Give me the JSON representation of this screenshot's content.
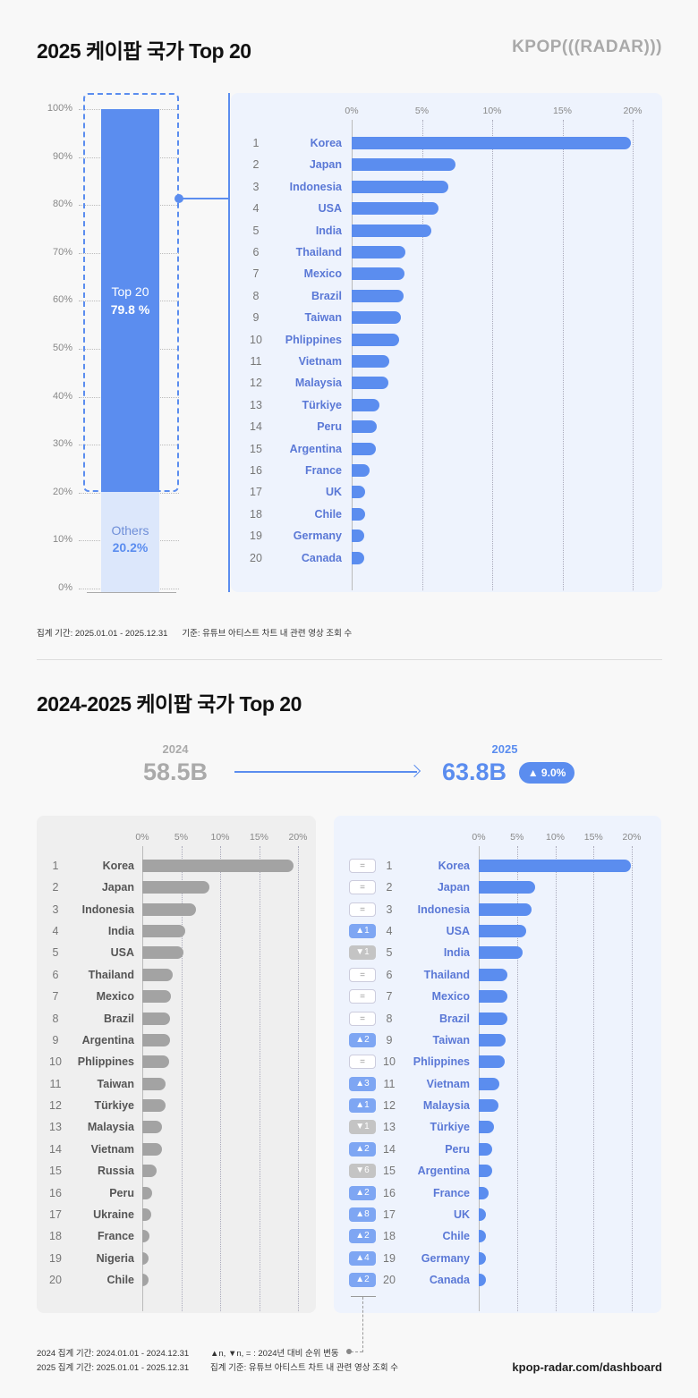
{
  "header": {
    "title": "2025 케이팝 국가 Top 20",
    "logo": "KPOP(((RADAR)))"
  },
  "share": {
    "top_label": "Top 20",
    "top_value": "79.8 %",
    "others_label": "Others",
    "others_value": "20.2%",
    "top_pct": 79.8,
    "others_pct": 20.2,
    "y_ticks": [
      "0%",
      "10%",
      "20%",
      "30%",
      "40%",
      "50%",
      "60%",
      "70%",
      "80%",
      "90%",
      "100%"
    ]
  },
  "footnote1": {
    "period": "집계 기간: 2025.01.01 - 2025.12.31",
    "basis": "기준: 유튜브 아티스트 차트 내 관련 영상 조회 수"
  },
  "section2": {
    "title": "2024-2025 케이팝 국가 Top 20",
    "y2024_label": "2024",
    "y2024_value": "58.5B",
    "y2025_label": "2025",
    "y2025_value": "63.8B",
    "growth": "▲ 9.0%"
  },
  "colors": {
    "blue": "#5b8def",
    "blue_text": "#5a78d6",
    "gray_bar": "#a3a3a3",
    "others": "#dce7fb"
  },
  "chart_data": [
    {
      "type": "bar",
      "orientation": "horizontal",
      "title": "2025",
      "x_ticks": [
        "0%",
        "5%",
        "10%",
        "15%",
        "20%"
      ],
      "xlim": [
        0,
        20
      ],
      "categories": [
        "Korea",
        "Japan",
        "Indonesia",
        "USA",
        "India",
        "Thailand",
        "Mexico",
        "Brazil",
        "Taiwan",
        "Phlippines",
        "Vietnam",
        "Malaysia",
        "Türkiye",
        "Peru",
        "Argentina",
        "France",
        "UK",
        "Chile",
        "Germany",
        "Canada"
      ],
      "values": [
        19.9,
        7.4,
        6.9,
        6.2,
        5.7,
        3.8,
        3.75,
        3.7,
        3.5,
        3.4,
        2.7,
        2.6,
        2.0,
        1.8,
        1.7,
        1.3,
        0.95,
        0.95,
        0.9,
        0.9
      ]
    },
    {
      "type": "bar",
      "orientation": "horizontal",
      "title": "2024",
      "x_ticks": [
        "0%",
        "5%",
        "10%",
        "15%",
        "20%"
      ],
      "xlim": [
        0,
        20
      ],
      "categories": [
        "Korea",
        "Japan",
        "Indonesia",
        "India",
        "USA",
        "Thailand",
        "Mexico",
        "Brazil",
        "Argentina",
        "Phlippines",
        "Taiwan",
        "Türkiye",
        "Malaysia",
        "Vietnam",
        "Russia",
        "Peru",
        "Ukraine",
        "France",
        "Nigeria",
        "Chile"
      ],
      "values": [
        19.4,
        8.6,
        6.9,
        5.5,
        5.3,
        3.9,
        3.7,
        3.6,
        3.6,
        3.4,
        3.0,
        3.0,
        2.5,
        2.5,
        1.8,
        1.3,
        1.1,
        0.9,
        0.8,
        0.8
      ]
    },
    {
      "type": "bar",
      "orientation": "horizontal",
      "title": "2025",
      "x_ticks": [
        "0%",
        "5%",
        "10%",
        "15%",
        "20%"
      ],
      "xlim": [
        0,
        20
      ],
      "categories": [
        "Korea",
        "Japan",
        "Indonesia",
        "USA",
        "India",
        "Thailand",
        "Mexico",
        "Brazil",
        "Taiwan",
        "Phlippines",
        "Vietnam",
        "Malaysia",
        "Türkiye",
        "Peru",
        "Argentina",
        "France",
        "UK",
        "Chile",
        "Germany",
        "Canada"
      ],
      "values": [
        19.9,
        7.4,
        6.9,
        6.2,
        5.7,
        3.8,
        3.75,
        3.7,
        3.5,
        3.4,
        2.7,
        2.6,
        2.0,
        1.8,
        1.7,
        1.3,
        0.95,
        0.95,
        0.9,
        0.9
      ],
      "rank_change": [
        "=",
        "=",
        "=",
        "▲1",
        "▼1",
        "=",
        "=",
        "=",
        "▲2",
        "=",
        "▲3",
        "▲1",
        "▼1",
        "▲2",
        "▼6",
        "▲2",
        "▲8",
        "▲2",
        "▲4",
        "▲2"
      ]
    }
  ],
  "footer": {
    "p2024": "2024 집계 기간: 2024.01.01 - 2024.12.31",
    "p2025": "2025 집계 기간: 2025.01.01 - 2025.12.31",
    "legend": "▲n, ▼n, = : 2024년 대비 순위 변동",
    "basis": "집계 기준: 유튜브 아티스트 차트 내 관련 영상 조회 수",
    "url": "kpop-radar.com/dashboard"
  }
}
